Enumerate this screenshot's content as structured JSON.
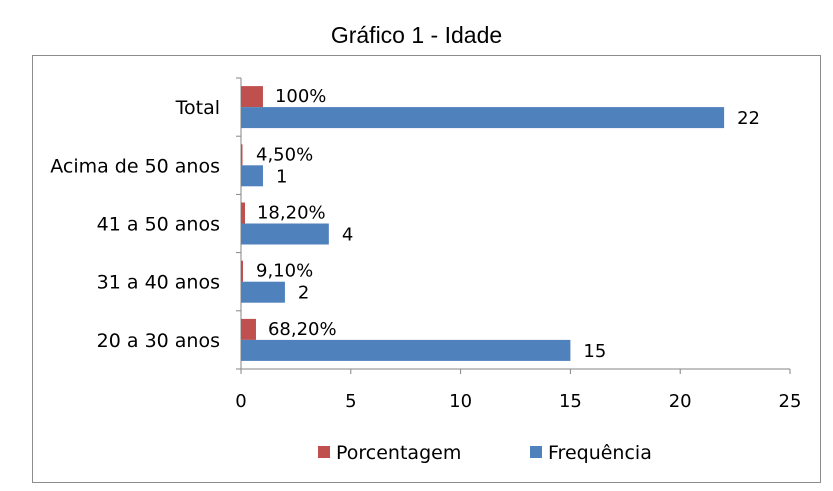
{
  "chart_data": {
    "type": "bar",
    "orientation": "horizontal",
    "title": "Gráfico 1 - Idade",
    "categories": [
      "Total",
      "Acima de 50 anos",
      "41 a 50 anos",
      "31 a 40 anos",
      "20 a 30 anos"
    ],
    "series": [
      {
        "name": "Porcentagem",
        "color": "#C0504D",
        "values": [
          1.0,
          0.045,
          0.182,
          0.091,
          0.682
        ],
        "labels": [
          "100%",
          "4,50%",
          "18,20%",
          "9,10%",
          "68,20%"
        ]
      },
      {
        "name": "Frequência",
        "color": "#4F81BD",
        "values": [
          22,
          1,
          4,
          2,
          15
        ],
        "labels": [
          "22",
          "1",
          "4",
          "2",
          "15"
        ]
      }
    ],
    "xlim": [
      0,
      25
    ],
    "xticks": [
      "0",
      "5",
      "10",
      "15",
      "20",
      "25"
    ],
    "legend_position": "bottom",
    "grid": false
  }
}
